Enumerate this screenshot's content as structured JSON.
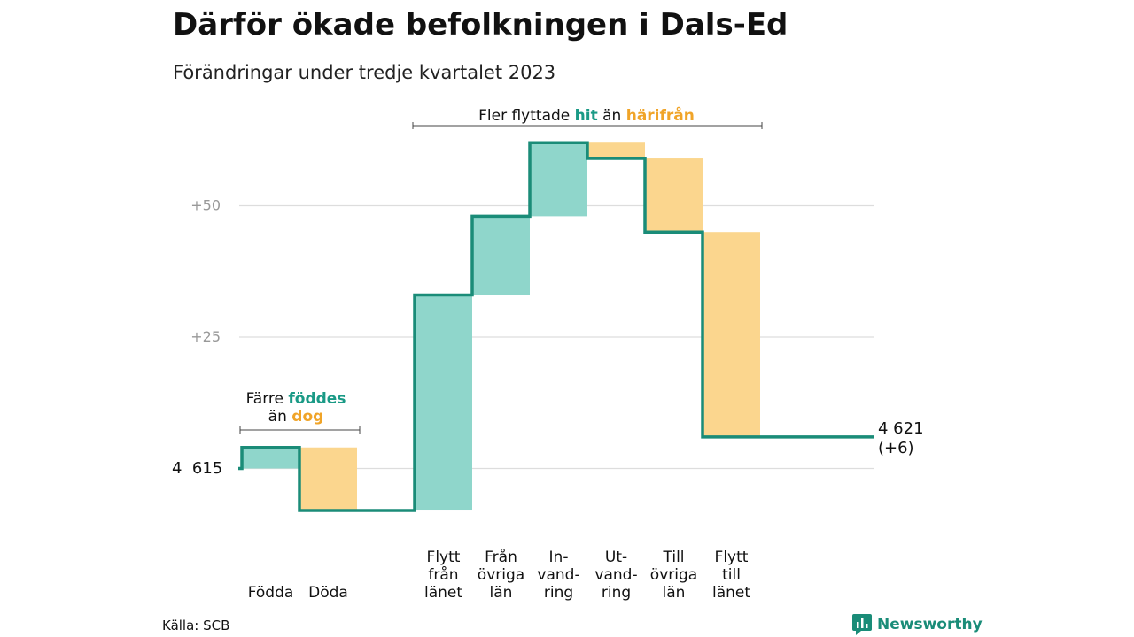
{
  "title": "Därför ökade befolkningen i Dals-Ed",
  "subtitle": "Förändringar under tredje kvartalet 2023",
  "source": "Källa: SCB",
  "brand": "Newsworthy",
  "colors": {
    "increase": "#8fd6cb",
    "decrease": "#fbd68e",
    "line": "#1a8c78",
    "accent_teal": "#1a9a86",
    "accent_orange": "#f0a428",
    "grid": "#dddddd",
    "tick": "#999999"
  },
  "annotations": {
    "migration": {
      "prefix": "Fler flyttade ",
      "hit": "hit",
      "mid": " än ",
      "harifran": "härifrån"
    },
    "births": {
      "line1_prefix": "Färre ",
      "foddes": "föddes",
      "line2_prefix": "än ",
      "dog": "dog"
    }
  },
  "chart_data": {
    "type": "waterfall",
    "start_label": "4  615",
    "start_value": 4615,
    "end_label_1": "4 621",
    "end_label_2": "(+6)",
    "end_value": 4621,
    "ytick_labels": [
      "+25",
      "+50"
    ],
    "yticks": [
      4640,
      4665
    ],
    "steps": [
      {
        "label": [
          "Födda"
        ],
        "value": 4
      },
      {
        "label": [
          "Döda"
        ],
        "value": -12
      },
      {
        "label": [],
        "value": 0
      },
      {
        "label": [
          "Flytt",
          "från",
          "länet"
        ],
        "value": 41
      },
      {
        "label": [
          "Från",
          "övriga",
          "län"
        ],
        "value": 15
      },
      {
        "label": [
          "In-",
          "vand-",
          "ring"
        ],
        "value": 14
      },
      {
        "label": [
          "Ut-",
          "vand-",
          "ring"
        ],
        "value": -3
      },
      {
        "label": [
          "Till",
          "övriga",
          "län"
        ],
        "value": -14
      },
      {
        "label": [
          "Flytt",
          "till",
          "länet"
        ],
        "value": -39
      }
    ]
  }
}
